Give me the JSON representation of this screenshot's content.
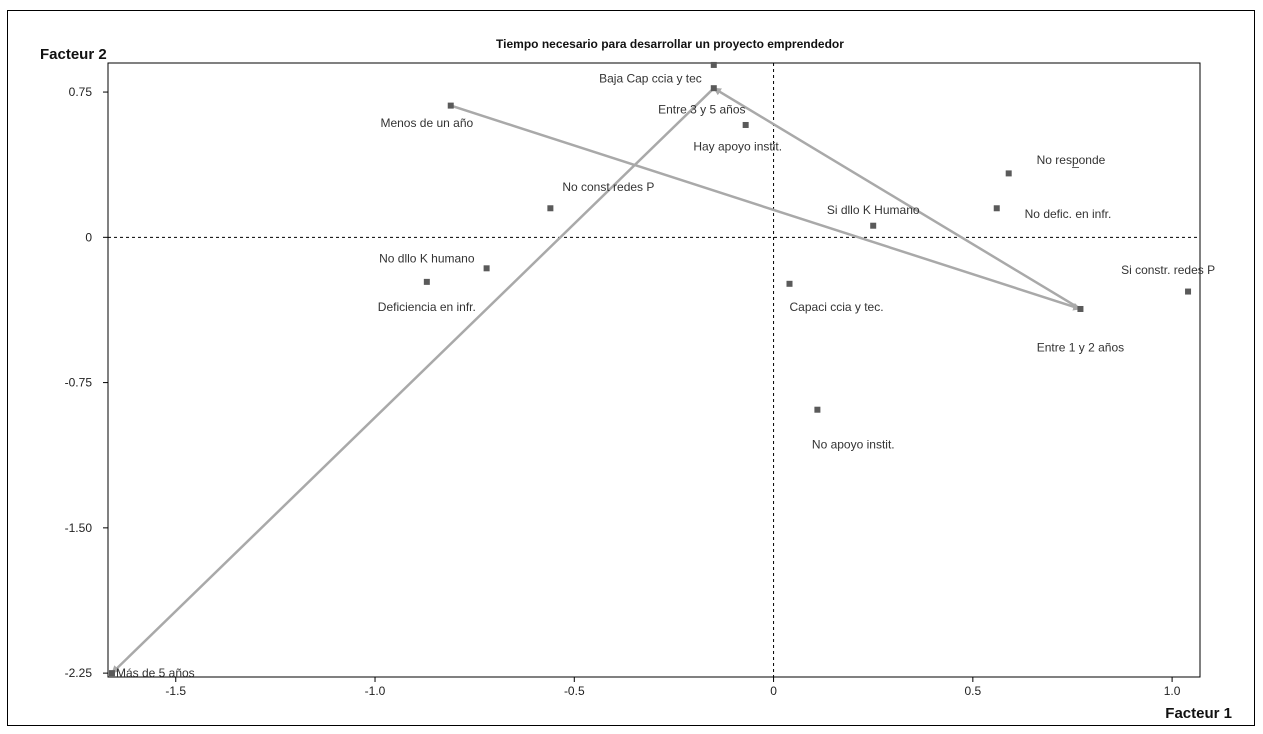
{
  "chart_data": {
    "type": "scatter",
    "title": "Tiempo necesario para desarrollar un proyecto emprendedor",
    "xlabel": "Facteur 1",
    "ylabel": "Facteur 2",
    "xlim": [
      -1.67,
      1.07
    ],
    "ylim": [
      -2.27,
      0.9
    ],
    "xticks": [
      {
        "value": -1.5,
        "label": "-1.5"
      },
      {
        "value": -1.0,
        "label": "-1.0"
      },
      {
        "value": -0.5,
        "label": "-0.5"
      },
      {
        "value": 0,
        "label": "0"
      },
      {
        "value": 0.5,
        "label": "0.5"
      },
      {
        "value": 1.0,
        "label": "1.0"
      }
    ],
    "yticks": [
      {
        "value": 0.75,
        "label": "0.75"
      },
      {
        "value": 0,
        "label": "0"
      },
      {
        "value": -0.75,
        "label": "-0.75"
      },
      {
        "value": -1.5,
        "label": "-1.50"
      },
      {
        "value": -2.25,
        "label": "-2.25"
      }
    ],
    "points": [
      {
        "label": "Baja Cap ccia y tec",
        "x": -0.15,
        "y": 0.89,
        "anchor": "end",
        "lx": -0.18,
        "ly": 0.82
      },
      {
        "label": "Entre 3 y 5 años",
        "x": -0.15,
        "y": 0.77,
        "anchor": "middle",
        "lx": -0.18,
        "ly": 0.66
      },
      {
        "label": "Hay apoyo instit.",
        "x": -0.07,
        "y": 0.58,
        "anchor": "middle",
        "lx": -0.09,
        "ly": 0.47
      },
      {
        "label": "Menos de un año",
        "x": -0.81,
        "y": 0.68,
        "anchor": "middle",
        "lx": -0.87,
        "ly": 0.59
      },
      {
        "label": "No resp̲onde",
        "x": 0.59,
        "y": 0.33,
        "anchor": "start",
        "lx": 0.66,
        "ly": 0.4
      },
      {
        "label": "No defic. en infr.",
        "x": 0.56,
        "y": 0.15,
        "anchor": "start",
        "lx": 0.63,
        "ly": 0.12
      },
      {
        "label": "No const redes P",
        "x": -0.56,
        "y": 0.15,
        "anchor": "start",
        "lx": -0.53,
        "ly": 0.26
      },
      {
        "label": "Si dllo K Humano",
        "x": 0.25,
        "y": 0.06,
        "anchor": "middle",
        "lx": 0.25,
        "ly": 0.14
      },
      {
        "label": "No dllo K humano",
        "x": -0.72,
        "y": -0.16,
        "anchor": "middle",
        "lx": -0.87,
        "ly": -0.11
      },
      {
        "label": "Deficiencia en infr.",
        "x": -0.87,
        "y": -0.23,
        "anchor": "middle",
        "lx": -0.87,
        "ly": -0.36
      },
      {
        "label": "Capaci ccia y tec.",
        "x": 0.04,
        "y": -0.24,
        "anchor": "start",
        "lx": 0.04,
        "ly": -0.36
      },
      {
        "label": "Si constr. redes P",
        "x": 1.04,
        "y": -0.28,
        "anchor": "middle",
        "lx": 0.99,
        "ly": -0.17
      },
      {
        "label": "Entre 1 y 2 años",
        "x": 0.77,
        "y": -0.37,
        "anchor": "middle",
        "lx": 0.77,
        "ly": -0.57
      },
      {
        "label": "No apoyo instit.",
        "x": 0.11,
        "y": -0.89,
        "anchor": "middle",
        "lx": 0.2,
        "ly": -1.07
      },
      {
        "label": "Más de 5 años",
        "x": -1.66,
        "y": -2.25,
        "anchor": "start",
        "lx": -1.65,
        "ly": -2.25
      }
    ],
    "arrows": [
      {
        "from": [
          -0.81,
          0.68
        ],
        "to": [
          0.77,
          -0.37
        ]
      },
      {
        "from": [
          0.77,
          -0.37
        ],
        "to": [
          -0.15,
          0.77
        ]
      },
      {
        "from": [
          -0.15,
          0.77
        ],
        "to": [
          -1.66,
          -2.25
        ]
      }
    ],
    "colors": {
      "marker": "#5a5a5a",
      "arrow": "#a9a9a9",
      "axis": "#000000"
    }
  }
}
